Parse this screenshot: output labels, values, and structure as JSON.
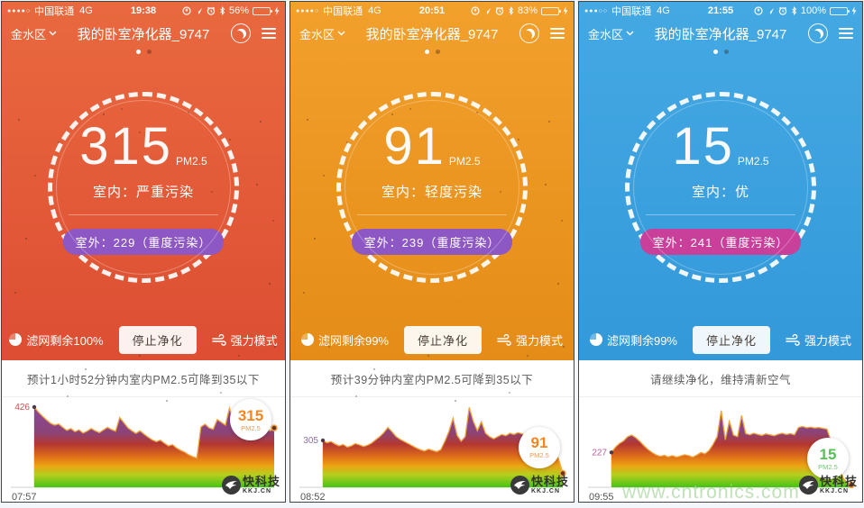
{
  "site_watermark": "www.cntronics.com",
  "brand": {
    "name": "快科技",
    "domain": "KKJ.CN"
  },
  "panels": [
    {
      "status": {
        "signal": "●●●●○",
        "carrier": "中国联通",
        "network": "4G",
        "time": "19:38",
        "battery_percent": "56%",
        "battery_level": 56
      },
      "header": {
        "location": "金水区",
        "title": "我的卧室净化器_9747"
      },
      "gauge": {
        "value": "315",
        "unit": "PM2.5",
        "indoor": "室内：严重污染",
        "outdoor": "室外：229（重度污染）",
        "outdoor_color": "#8d58c4"
      },
      "controls": {
        "filter_label": "滤网剩余100%",
        "stop_label": "停止净化",
        "mode_label": "强力模式"
      },
      "prediction": "预计1小时52分钟内室内PM2.5可降到35以下",
      "theme": {
        "bg_top": "#e9693f",
        "bg_bottom": "#d8432e",
        "speckles": true
      },
      "chart": {
        "type": "area",
        "start_label": "426",
        "start_time": "07:57",
        "current_value": "315",
        "current_unit": "PM2.5",
        "current_color": "#f5861f",
        "label_color": "#c0564e",
        "ymax": 440,
        "values": [
          426,
          400,
          378,
          358,
          340,
          330,
          336,
          318,
          302,
          312,
          295,
          305,
          288,
          298,
          312,
          300,
          290,
          304,
          318,
          306,
          298,
          370,
          344,
          316,
          300,
          286,
          300,
          282,
          266,
          252,
          242,
          250,
          234,
          220,
          226,
          208,
          196,
          186,
          172,
          162,
          155,
          320,
          335,
          315,
          308,
          360,
          345,
          330,
          420,
          350,
          330,
          345,
          332,
          318,
          328,
          340,
          330,
          312,
          300,
          315
        ]
      }
    },
    {
      "status": {
        "signal": "●●●●○",
        "carrier": "中国联通",
        "network": "4G",
        "time": "20:51",
        "battery_percent": "83%",
        "battery_level": 83
      },
      "header": {
        "location": "金水区",
        "title": "我的卧室净化器_9747"
      },
      "gauge": {
        "value": "91",
        "unit": "PM2.5",
        "indoor": "室内：轻度污染",
        "outdoor": "室外：239（重度污染）",
        "outdoor_color": "#8d58c4"
      },
      "controls": {
        "filter_label": "滤网剩余99%",
        "stop_label": "停止净化",
        "mode_label": "强力模式"
      },
      "prediction": "预计39分钟内室内PM2.5可降到35以下",
      "theme": {
        "bg_top": "#f2a02c",
        "bg_bottom": "#e08410",
        "speckles": true
      },
      "chart": {
        "type": "area",
        "start_label": "305",
        "start_time": "08:52",
        "current_value": "91",
        "current_unit": "PM2.5",
        "current_color": "#f5861f",
        "label_color": "#8f6fa3",
        "ymax": 540,
        "values": [
          305,
          290,
          298,
          282,
          270,
          278,
          262,
          270,
          284,
          276,
          266,
          274,
          288,
          310,
          330,
          356,
          390,
          362,
          330,
          312,
          298,
          284,
          270,
          256,
          244,
          236,
          248,
          240,
          232,
          244,
          300,
          364,
          450,
          340,
          300,
          330,
          520,
          430,
          368,
          428,
          352,
          330,
          316,
          330,
          344,
          336,
          352,
          344,
          356,
          348,
          338,
          330,
          342,
          336,
          346,
          338,
          310,
          260,
          180,
          91
        ]
      }
    },
    {
      "status": {
        "signal": "●●●○○",
        "carrier": "中国联通",
        "network": "4G",
        "time": "21:55",
        "battery_percent": "100%",
        "battery_level": 100
      },
      "header": {
        "location": "金水区",
        "title": "我的卧室净化器_9747"
      },
      "gauge": {
        "value": "15",
        "unit": "PM2.5",
        "indoor": "室内：优",
        "outdoor": "室外：241（重度污染）",
        "outdoor_color": "#c9409a"
      },
      "controls": {
        "filter_label": "滤网剩余99%",
        "stop_label": "停止净化",
        "mode_label": "强力模式"
      },
      "prediction": "请继续净化，维持清新空气",
      "theme": {
        "bg_top": "#44a9e3",
        "bg_bottom": "#2d92d5",
        "speckles": false
      },
      "chart": {
        "type": "area",
        "start_label": "227",
        "start_time": "09:55",
        "current_value": "15",
        "current_unit": "PM2.5",
        "current_color": "#55c157",
        "label_color": "#b8609c",
        "ymax": 540,
        "values": [
          227,
          262,
          286,
          302,
          330,
          340,
          322,
          298,
          270,
          246,
          226,
          210,
          202,
          208,
          198,
          206,
          196,
          204,
          212,
          206,
          196,
          210,
          226,
          218,
          240,
          280,
          330,
          500,
          310,
          430,
          340,
          330,
          468,
          350,
          342,
          352,
          344,
          338,
          348,
          342,
          336,
          346,
          352,
          344,
          350,
          342,
          390,
          396,
          388,
          392,
          386,
          390,
          384,
          380,
          300,
          210,
          120,
          60,
          25,
          15
        ]
      }
    }
  ]
}
